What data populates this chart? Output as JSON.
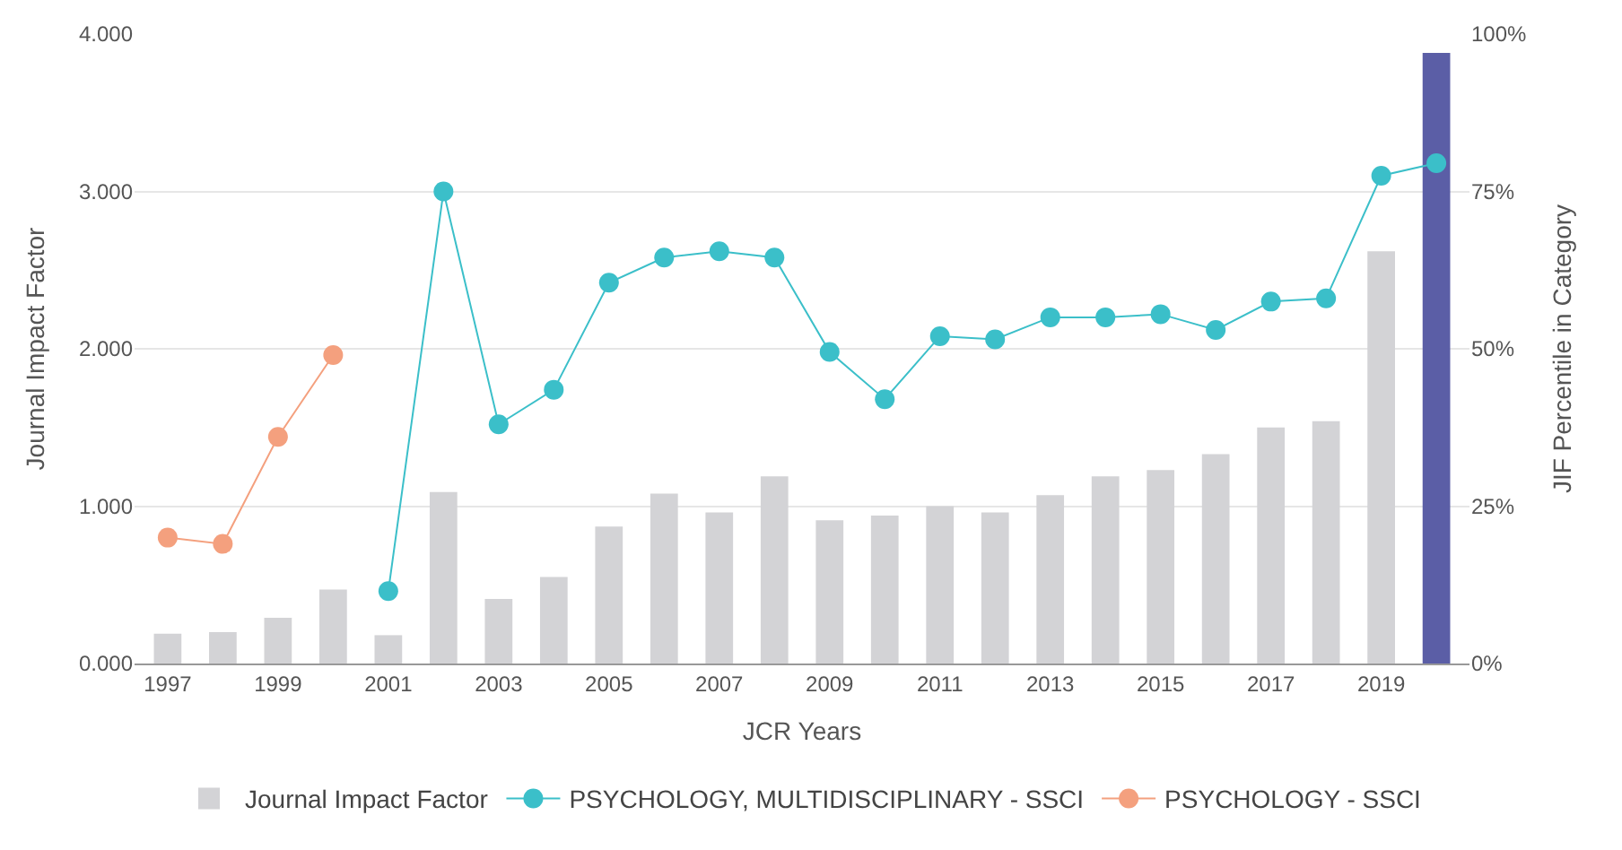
{
  "chart_data": {
    "type": "bar",
    "xlabel": "JCR Years",
    "ylabel": "Journal Impact Factor",
    "y2label": "JIF Percentile in Category",
    "x": [
      1997,
      1998,
      1999,
      2000,
      2001,
      2002,
      2003,
      2004,
      2005,
      2006,
      2007,
      2008,
      2009,
      2010,
      2011,
      2012,
      2013,
      2014,
      2015,
      2016,
      2017,
      2018,
      2019,
      2020
    ],
    "xlim": [
      1996.4,
      2020.6
    ],
    "xticks": [
      1997,
      1999,
      2001,
      2003,
      2005,
      2007,
      2009,
      2011,
      2013,
      2015,
      2017,
      2019
    ],
    "ylim": [
      0,
      4
    ],
    "yticks": [
      {
        "value": 0,
        "label": "0.000"
      },
      {
        "value": 1,
        "label": "1.000"
      },
      {
        "value": 2,
        "label": "2.000"
      },
      {
        "value": 3,
        "label": "3.000"
      },
      {
        "value": 4,
        "label": "4.000"
      }
    ],
    "y2lim": [
      0,
      100
    ],
    "y2ticks": [
      {
        "value": 0,
        "label": "0%"
      },
      {
        "value": 25,
        "label": "25%"
      },
      {
        "value": 50,
        "label": "50%"
      },
      {
        "value": 75,
        "label": "75%"
      },
      {
        "value": 100,
        "label": "100%"
      }
    ],
    "grid": "y",
    "legend": "bottom",
    "marker": "circle",
    "series": [
      {
        "name": "Journal Impact Factor",
        "color": "#d3d3d6",
        "colors": [
          "#d3d3d6",
          "#d3d3d6",
          "#d3d3d6",
          "#d3d3d6",
          "#d3d3d6",
          "#d3d3d6",
          "#d3d3d6",
          "#d3d3d6",
          "#d3d3d6",
          "#d3d3d6",
          "#d3d3d6",
          "#d3d3d6",
          "#d3d3d6",
          "#d3d3d6",
          "#d3d3d6",
          "#d3d3d6",
          "#d3d3d6",
          "#d3d3d6",
          "#d3d3d6",
          "#d3d3d6",
          "#d3d3d6",
          "#d3d3d6",
          "#d3d3d6",
          "#5b5ea6"
        ],
        "values": [
          0.19,
          0.2,
          0.29,
          0.47,
          0.18,
          1.09,
          0.41,
          0.55,
          0.87,
          1.08,
          0.96,
          1.19,
          0.91,
          0.94,
          1.0,
          0.96,
          1.07,
          1.19,
          1.23,
          1.33,
          1.5,
          1.54,
          2.62,
          3.88
        ]
      },
      {
        "name": "PSYCHOLOGY, MULTIDISCIPLINARY - SSCI",
        "type": "line",
        "axis": "y2",
        "color": "#3bbfc9",
        "values": [
          null,
          null,
          null,
          null,
          11.5,
          75,
          38,
          43.5,
          60.5,
          64.5,
          65.5,
          64.5,
          49.5,
          42,
          52,
          51.5,
          55,
          55,
          55.5,
          53,
          57.5,
          58,
          77.5,
          79.5
        ]
      },
      {
        "name": "PSYCHOLOGY - SSCI",
        "type": "line",
        "axis": "y2",
        "color": "#f4a07e",
        "values": [
          20,
          19,
          36,
          49,
          null,
          null,
          null,
          null,
          null,
          null,
          null,
          null,
          null,
          null,
          null,
          null,
          null,
          null,
          null,
          null,
          null,
          null,
          null,
          null
        ]
      }
    ]
  }
}
